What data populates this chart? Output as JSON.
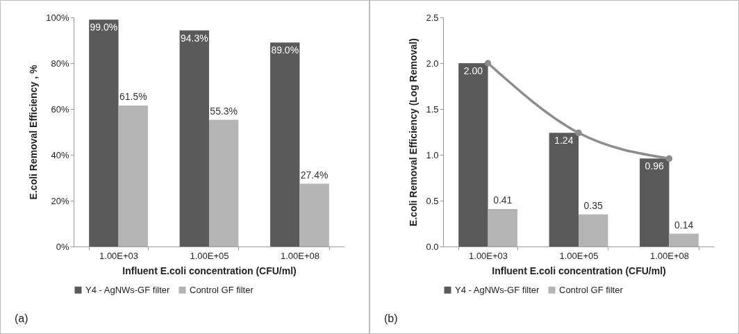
{
  "chart_data": [
    {
      "type": "bar",
      "xlabel": "Influent E.coli concentration (CFU/ml)",
      "ylabel": "E.coli Removal Efficiency , %",
      "categories": [
        "1.00E+03",
        "1.00E+05",
        "1.00E+08"
      ],
      "series": [
        {
          "name": "Y4 - AgNWs-GF filter",
          "color": "#5a5a5a",
          "values": [
            99.0,
            94.3,
            89.0
          ],
          "value_labels": [
            "99.0%",
            "94.3%",
            "89.0%"
          ]
        },
        {
          "name": "Control GF filter",
          "color": "#b4b4b4",
          "values": [
            61.5,
            55.3,
            27.4
          ],
          "value_labels": [
            "61.5%",
            "55.3%",
            "27.4%"
          ]
        }
      ],
      "ylim": [
        0,
        100
      ],
      "yticks": [
        {
          "value": 0,
          "label": "0%"
        },
        {
          "value": 20,
          "label": "20%"
        },
        {
          "value": 40,
          "label": "40%"
        },
        {
          "value": 60,
          "label": "60%"
        },
        {
          "value": 80,
          "label": "80%"
        },
        {
          "value": 100,
          "label": "100%"
        }
      ],
      "legend": "bottom",
      "annotations": [
        "(a)"
      ]
    },
    {
      "type": "bar",
      "xlabel": "Influent E.coli concentration (CFU/ml)",
      "ylabel": "E.coli Removal Efficiency (Log Removal)",
      "categories": [
        "1.00E+03",
        "1.00E+05",
        "1.00E+08"
      ],
      "series": [
        {
          "name": "Y4 - AgNWs-GF filter",
          "color": "#5a5a5a",
          "values": [
            2.0,
            1.24,
            0.96
          ],
          "value_labels": [
            "2.00",
            "1.24",
            "0.96"
          ]
        },
        {
          "name": "Control GF filter",
          "color": "#b4b4b4",
          "values": [
            0.41,
            0.35,
            0.14
          ],
          "value_labels": [
            "0.41",
            "0.35",
            "0.14"
          ]
        },
        {
          "type": "line",
          "color": "#8c8c8c",
          "marker": "circle",
          "values": [
            2.0,
            1.24,
            0.96
          ]
        }
      ],
      "ylim": [
        0,
        2.5
      ],
      "yticks": [
        {
          "value": 0,
          "label": "0.0"
        },
        0.5,
        {
          "value": 1,
          "label": "1.0"
        },
        1.5,
        {
          "value": 2,
          "label": "2.0"
        },
        2.5
      ],
      "legend": "bottom",
      "annotations": [
        "(b)"
      ]
    }
  ]
}
